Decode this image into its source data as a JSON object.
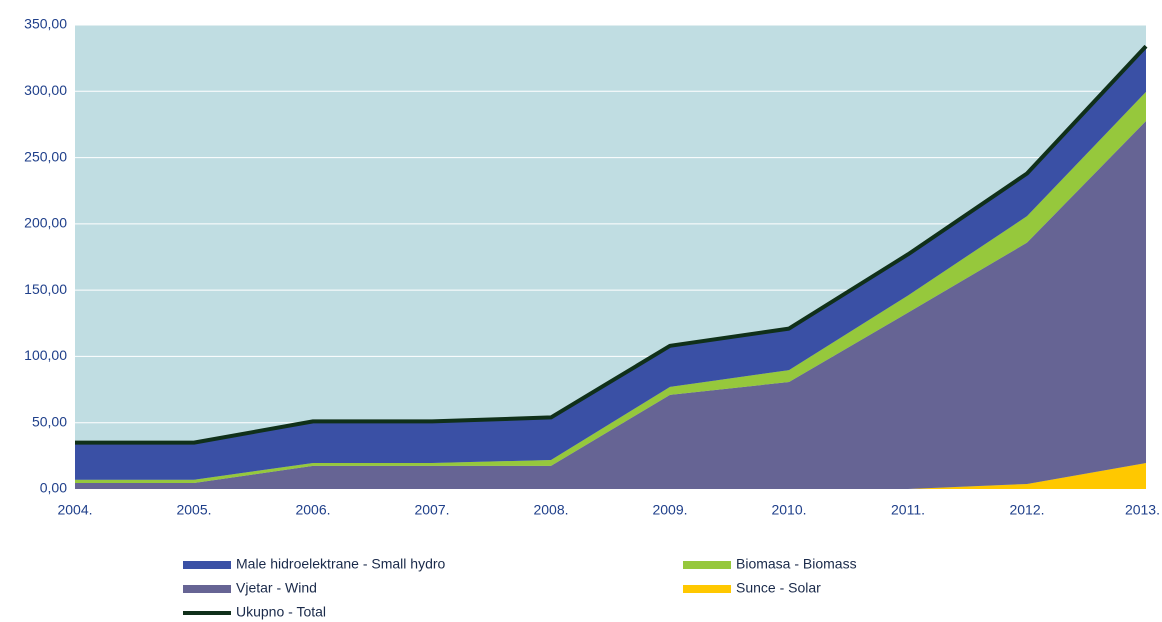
{
  "chart_data": {
    "type": "area",
    "stacked": true,
    "categories": [
      "2004.",
      "2005.",
      "2006.",
      "2007.",
      "2008.",
      "2009.",
      "2010.",
      "2011.",
      "2012.",
      "2013."
    ],
    "series": [
      {
        "name": "Sunce - Solar",
        "color": "#ffc800",
        "values": [
          0,
          0,
          0,
          0,
          0,
          0,
          0,
          0,
          3.8,
          19.6
        ]
      },
      {
        "name": "Vjetar - Wind",
        "color": "#666494",
        "values": [
          4.5,
          4.5,
          17.4,
          17.4,
          17.4,
          71,
          80.7,
          133,
          182,
          258
        ]
      },
      {
        "name": "Biomasa - Biomass",
        "color": "#96c83c",
        "values": [
          2.5,
          2.5,
          2.2,
          2.2,
          4.5,
          6,
          9,
          13,
          20,
          22
        ]
      },
      {
        "name": "Male hidroelektrane - Small hydro",
        "color": "#3a50a5",
        "values": [
          28,
          28,
          31.4,
          31.4,
          32,
          31,
          31.3,
          31,
          32,
          34
        ]
      },
      {
        "name": "Ukupno - Total",
        "color": "#10301a",
        "type": "line",
        "values": [
          35,
          35,
          51,
          51,
          54,
          108,
          121,
          177,
          238,
          334
        ]
      }
    ],
    "ylim": [
      0,
      350
    ],
    "yticks": [
      {
        "value": 0,
        "label": "0,00"
      },
      {
        "value": 50,
        "label": "50,00"
      },
      {
        "value": 100,
        "label": "100,00"
      },
      {
        "value": 150,
        "label": "150,00"
      },
      {
        "value": 200,
        "label": "200,00"
      },
      {
        "value": 250,
        "label": "250,00"
      },
      {
        "value": 300,
        "label": "300,00"
      },
      {
        "value": 350,
        "label": "350,00"
      }
    ],
    "grid": true,
    "legend": "bottom"
  }
}
